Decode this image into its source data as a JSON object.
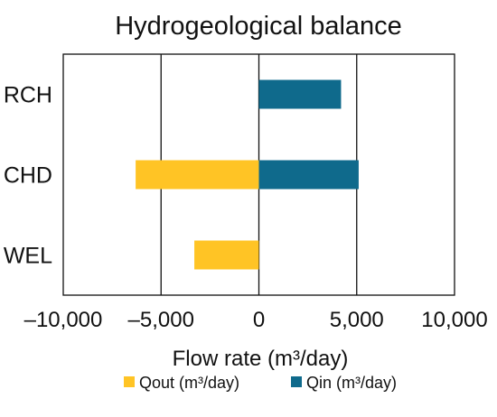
{
  "chart_data": {
    "type": "bar",
    "orientation": "horizontal",
    "title": "Hydrogeological balance",
    "xlabel": "Flow rate (m³/day)",
    "ylabel": "",
    "categories": [
      "RCH",
      "CHD",
      "WEL"
    ],
    "series": [
      {
        "name": "Qout (m³/day)",
        "color": "#FFC425",
        "values": [
          0,
          -6300,
          -3300
        ]
      },
      {
        "name": "Qin (m³/day)",
        "color": "#0F6A8C",
        "values": [
          4200,
          5100,
          0
        ]
      }
    ],
    "xlim": [
      -10000,
      10000
    ],
    "xticks": [
      -10000,
      -5000,
      0,
      5000,
      10000
    ],
    "xtick_labels": [
      "–10,000",
      "–5,000",
      "0",
      "5,000",
      "10,000"
    ],
    "grid": "vertical",
    "legend_position": "bottom"
  }
}
